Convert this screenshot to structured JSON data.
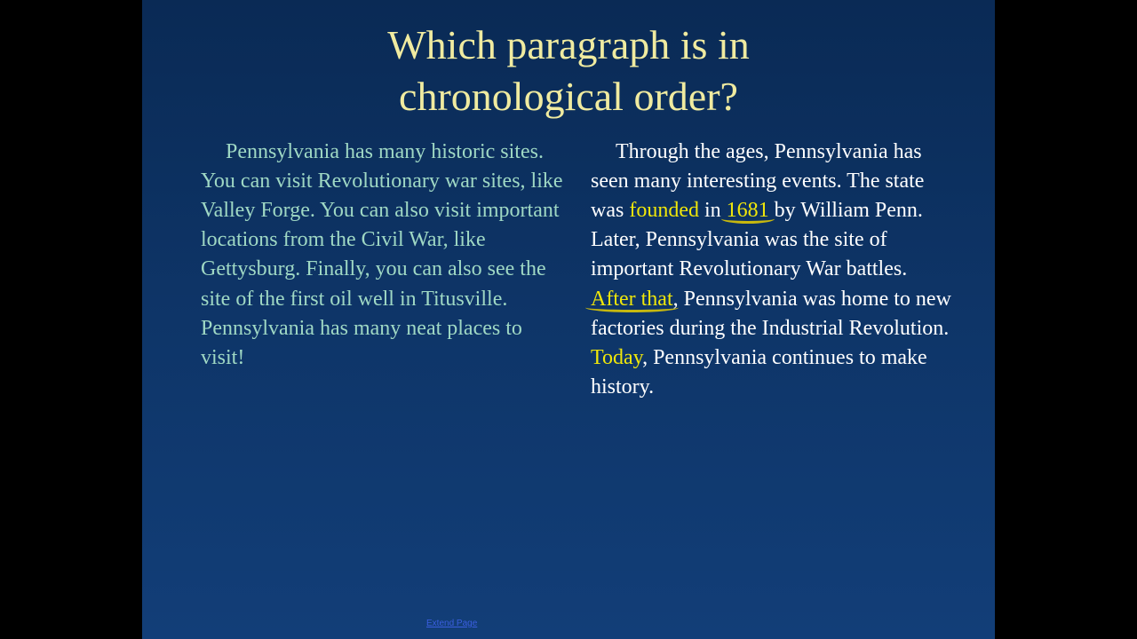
{
  "slide": {
    "background_gradient": [
      "#0a2a55",
      "#0e3568",
      "#123e78"
    ],
    "letterbox_color": "#000000",
    "title": {
      "line1": "Which paragraph is in",
      "line2": "chronological order?",
      "color": "#f0eba0",
      "fontsize": 46
    },
    "left_paragraph": {
      "color": "#9fd8c4",
      "fontsize": 24,
      "text": "Pennsylvania has many historic sites. You can visit Revolutionary war sites, like Valley Forge. You can also visit important locations from the Civil War, like Gettysburg. Finally, you can also see the site of the first oil well in Titusville. Pennsylvania has many neat places to visit!"
    },
    "right_paragraph": {
      "color": "#ffffff",
      "fontsize": 24,
      "highlight_color": "#f0e70a",
      "segments": {
        "s1": "Through the ages, Pennsylvania has seen many interesting events. The state was ",
        "h1": "founded",
        "s2": " in ",
        "h2": "1681",
        "s3": " by William Penn. Later, Pennsylvania was the site of important Revolutionary War battles. ",
        "h3": "After that",
        "s4": ", Pennsylvania was home to new factories during the Industrial Revolution. ",
        "h4": "Today",
        "s5": ", Pennsylvania continues to make history."
      }
    },
    "footer_link": "Extend Page"
  }
}
